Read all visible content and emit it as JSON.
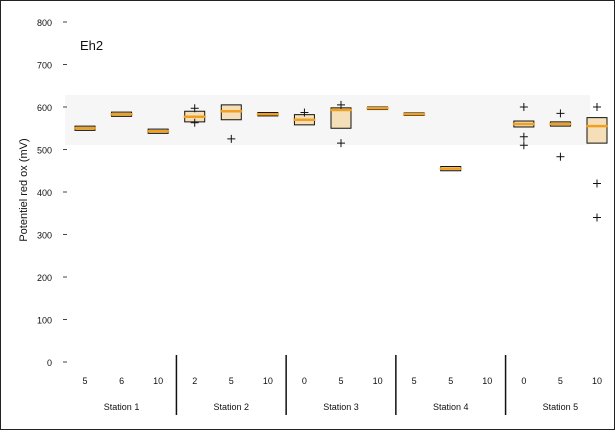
{
  "chart_data": {
    "type": "box",
    "title": "Eh2",
    "ylabel": "Potentiel red ox (mV)",
    "ylim": [
      0,
      800
    ],
    "yticks": [
      "0",
      "100",
      "200",
      "300",
      "400",
      "500",
      "600",
      "700",
      "800"
    ],
    "stations": [
      {
        "name": "Station 1",
        "depths": [
          "5",
          "6",
          "10"
        ]
      },
      {
        "name": "Station 2",
        "depths": [
          "2",
          "5",
          "10"
        ]
      },
      {
        "name": "Station 3",
        "depths": [
          "0",
          "5",
          "10"
        ]
      },
      {
        "name": "Station 4",
        "depths": [
          "5",
          "5",
          "10"
        ]
      },
      {
        "name": "Station 5",
        "depths": [
          "0",
          "5",
          "10"
        ]
      }
    ],
    "boxes": [
      {
        "median": 550,
        "q1": 545,
        "q3": 555
      },
      {
        "median": 583,
        "q1": 578,
        "q3": 588
      },
      {
        "median": 543,
        "q1": 538,
        "q3": 548
      },
      {
        "median": 577,
        "q1": 565,
        "q3": 590,
        "outliers": [
          597,
          563
        ]
      },
      {
        "median": 590,
        "q1": 570,
        "q3": 605,
        "outliers": [
          525
        ]
      },
      {
        "median": 583,
        "q1": 579,
        "q3": 587
      },
      {
        "median": 570,
        "q1": 558,
        "q3": 582,
        "outliers": [
          587
        ]
      },
      {
        "median": 593,
        "q1": 550,
        "q3": 598,
        "outliers": [
          605,
          515
        ]
      },
      {
        "median": 597,
        "q1": 594,
        "q3": 600
      },
      {
        "median": 583,
        "q1": 580,
        "q3": 586
      },
      {
        "median": 455,
        "q1": 450,
        "q3": 460
      },
      null,
      {
        "median": 560,
        "q1": 553,
        "q3": 567,
        "outliers": [
          600,
          530,
          510
        ]
      },
      {
        "median": 560,
        "q1": 555,
        "q3": 565,
        "outliers": [
          585,
          483
        ]
      },
      {
        "median": 555,
        "q1": 515,
        "q3": 575,
        "outliers": [
          600,
          420,
          340
        ]
      }
    ]
  }
}
